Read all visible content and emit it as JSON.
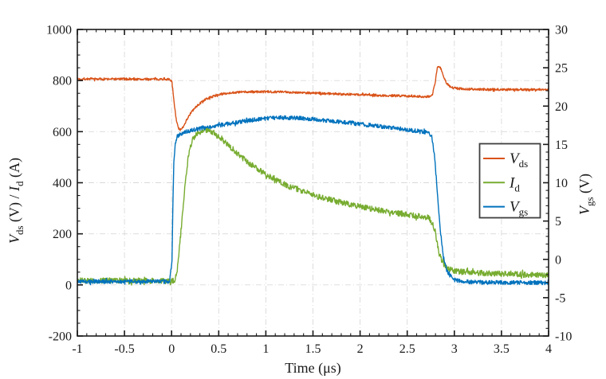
{
  "chart_data": {
    "type": "line",
    "title": "",
    "xlabel_parts": [
      [
        "n",
        "Time (μs)"
      ]
    ],
    "ylabel_left_parts": [
      [
        "i",
        "V"
      ],
      [
        "sub",
        "ds"
      ],
      [
        "n",
        " (V) / "
      ],
      [
        "i",
        "I"
      ],
      [
        "sub",
        "d"
      ],
      [
        "n",
        " (A)"
      ]
    ],
    "ylabel_right_parts": [
      [
        "i",
        "V"
      ],
      [
        "sub",
        "gs"
      ],
      [
        "n",
        " (V)"
      ]
    ],
    "x_axis": {
      "min": -1,
      "max": 4,
      "major_ticks": [
        -1,
        -0.5,
        0,
        0.5,
        1,
        1.5,
        2,
        2.5,
        3,
        3.5,
        4
      ],
      "tick_labels": [
        "-1",
        "-0.5",
        "0",
        "0.5",
        "1",
        "1.5",
        "2",
        "2.5",
        "3",
        "3.5",
        "4"
      ],
      "minor_step": 0.1
    },
    "y_left": {
      "min": -200,
      "max": 1000,
      "major_ticks": [
        -200,
        0,
        200,
        400,
        600,
        800,
        1000
      ],
      "tick_labels": [
        "-200",
        "0",
        "200",
        "400",
        "600",
        "800",
        "1000"
      ],
      "minor_step": 50
    },
    "y_right": {
      "min": -10,
      "max": 30,
      "major_ticks": [
        -10,
        -5,
        0,
        5,
        10,
        15,
        20,
        25,
        30
      ],
      "tick_labels": [
        "-10",
        "-5",
        "0",
        "5",
        "10",
        "15",
        "20",
        "25",
        "30"
      ],
      "minor_step": 1
    },
    "grid": {
      "vertical_values": [
        -0.5,
        0,
        0.5,
        1,
        1.5,
        2,
        2.5,
        3,
        3.5
      ],
      "horizontal_values_left": [
        0,
        200,
        400,
        600,
        800
      ],
      "color": "#d9d9d9",
      "style": "dash-dot"
    },
    "colors": {
      "vds": "#d95319",
      "id": "#77ac30",
      "vgs": "#0072bd",
      "axis": "#1a1a1a",
      "legend_border": "#3f3f3f",
      "background": "#ffffff"
    },
    "legend": {
      "position": "middle-right",
      "entries": [
        {
          "key": "vds",
          "name_parts": [
            [
              "i",
              "V"
            ],
            [
              "sub",
              "ds"
            ]
          ]
        },
        {
          "key": "id",
          "name_parts": [
            [
              "i",
              "I"
            ],
            [
              "sub",
              "d"
            ]
          ]
        },
        {
          "key": "vgs",
          "name_parts": [
            [
              "i",
              "V"
            ],
            [
              "sub",
              "gs"
            ]
          ]
        }
      ]
    },
    "series": [
      {
        "key": "vds",
        "axis": "left",
        "color": "vds",
        "noise": 4.5,
        "points": [
          [
            -1,
            806
          ],
          [
            -0.6,
            806
          ],
          [
            -0.3,
            805
          ],
          [
            -0.05,
            806
          ],
          [
            0,
            800
          ],
          [
            0.01,
            778
          ],
          [
            0.03,
            700
          ],
          [
            0.05,
            645
          ],
          [
            0.07,
            616
          ],
          [
            0.09,
            605
          ],
          [
            0.11,
            611
          ],
          [
            0.14,
            632
          ],
          [
            0.18,
            660
          ],
          [
            0.22,
            681
          ],
          [
            0.27,
            701
          ],
          [
            0.33,
            719
          ],
          [
            0.4,
            733
          ],
          [
            0.48,
            743
          ],
          [
            0.56,
            749
          ],
          [
            0.65,
            753
          ],
          [
            0.75,
            755
          ],
          [
            0.9,
            756
          ],
          [
            1.1,
            756
          ],
          [
            1.3,
            754
          ],
          [
            1.6,
            750
          ],
          [
            1.9,
            746
          ],
          [
            2.2,
            742
          ],
          [
            2.45,
            740
          ],
          [
            2.6,
            738
          ],
          [
            2.7,
            737
          ],
          [
            2.74,
            739
          ],
          [
            2.77,
            748
          ],
          [
            2.8,
            800
          ],
          [
            2.82,
            852
          ],
          [
            2.84,
            858
          ],
          [
            2.86,
            845
          ],
          [
            2.89,
            810
          ],
          [
            2.92,
            788
          ],
          [
            2.96,
            775
          ],
          [
            3.0,
            770
          ],
          [
            3.1,
            767
          ],
          [
            3.3,
            765
          ],
          [
            3.6,
            765
          ],
          [
            4,
            765
          ]
        ]
      },
      {
        "key": "id",
        "axis": "left",
        "color": "id",
        "noise": 11,
        "points": [
          [
            -1,
            17
          ],
          [
            -0.5,
            17
          ],
          [
            0,
            15
          ],
          [
            0.03,
            16
          ],
          [
            0.06,
            60
          ],
          [
            0.09,
            170
          ],
          [
            0.12,
            300
          ],
          [
            0.15,
            420
          ],
          [
            0.18,
            510
          ],
          [
            0.21,
            560
          ],
          [
            0.25,
            585
          ],
          [
            0.3,
            596
          ],
          [
            0.34,
            605
          ],
          [
            0.38,
            608
          ],
          [
            0.42,
            602
          ],
          [
            0.46,
            592
          ],
          [
            0.5,
            580
          ],
          [
            0.6,
            548
          ],
          [
            0.7,
            514
          ],
          [
            0.8,
            483
          ],
          [
            0.9,
            456
          ],
          [
            1.0,
            432
          ],
          [
            1.1,
            412
          ],
          [
            1.2,
            394
          ],
          [
            1.35,
            372
          ],
          [
            1.5,
            353
          ],
          [
            1.65,
            337
          ],
          [
            1.8,
            323
          ],
          [
            2.0,
            307
          ],
          [
            2.2,
            293
          ],
          [
            2.4,
            281
          ],
          [
            2.55,
            273
          ],
          [
            2.68,
            266
          ],
          [
            2.73,
            262
          ],
          [
            2.77,
            240
          ],
          [
            2.8,
            196
          ],
          [
            2.84,
            122
          ],
          [
            2.88,
            85
          ],
          [
            2.93,
            64
          ],
          [
            3.0,
            54
          ],
          [
            3.15,
            49
          ],
          [
            3.4,
            45
          ],
          [
            3.7,
            41
          ],
          [
            4,
            37
          ]
        ]
      },
      {
        "key": "vgs",
        "axis": "right",
        "color": "vgs",
        "noise": 0.26,
        "points": [
          [
            -1,
            -2.9
          ],
          [
            -0.5,
            -2.9
          ],
          [
            -0.02,
            -2.9
          ],
          [
            0.005,
            0
          ],
          [
            0.015,
            8
          ],
          [
            0.025,
            13
          ],
          [
            0.04,
            15.3
          ],
          [
            0.06,
            16.0
          ],
          [
            0.09,
            16.3
          ],
          [
            0.13,
            16.55
          ],
          [
            0.18,
            16.75
          ],
          [
            0.25,
            16.95
          ],
          [
            0.33,
            17.1
          ],
          [
            0.45,
            17.35
          ],
          [
            0.6,
            17.7
          ],
          [
            0.75,
            18.0
          ],
          [
            0.9,
            18.25
          ],
          [
            1.05,
            18.45
          ],
          [
            1.2,
            18.5
          ],
          [
            1.35,
            18.42
          ],
          [
            1.5,
            18.3
          ],
          [
            1.7,
            18.05
          ],
          [
            1.9,
            17.8
          ],
          [
            2.1,
            17.5
          ],
          [
            2.3,
            17.2
          ],
          [
            2.5,
            16.9
          ],
          [
            2.65,
            16.7
          ],
          [
            2.72,
            16.5
          ],
          [
            2.76,
            16.0
          ],
          [
            2.79,
            13.5
          ],
          [
            2.82,
            8.5
          ],
          [
            2.85,
            4.0
          ],
          [
            2.88,
            0.5
          ],
          [
            2.92,
            -1.5
          ],
          [
            2.96,
            -2.3
          ],
          [
            3.02,
            -2.7
          ],
          [
            3.1,
            -2.9
          ],
          [
            3.3,
            -3.0
          ],
          [
            4,
            -3.05
          ]
        ]
      }
    ]
  }
}
